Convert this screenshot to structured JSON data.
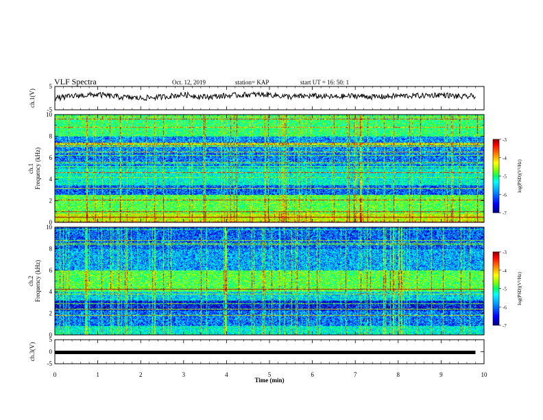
{
  "header": {
    "title": "VLF Spectra",
    "date": "Oct. 12, 2019",
    "station": "station= KAP",
    "start": "start  UT =   16: 50: 1"
  },
  "colors": {
    "trace": "#000000",
    "spectrogram_bg": "#1a2fd6",
    "colormap": [
      "#00007f",
      "#0000ff",
      "#00a0ff",
      "#00ffff",
      "#00ff60",
      "#80ff00",
      "#ffff00",
      "#ff8000",
      "#ff0000",
      "#8b0000"
    ]
  },
  "chart_data": [
    {
      "type": "line",
      "name": "ch1-waveform",
      "ylabel": "ch.1(V)",
      "ylim": [
        -5,
        5
      ],
      "yticks": [
        "5",
        "-5"
      ],
      "xlim": [
        0,
        10
      ],
      "description_values": "noisy trace oscillating roughly between -1 and 2 V",
      "x": [
        0,
        0.5,
        1,
        1.5,
        2,
        2.5,
        3,
        3.5,
        4,
        4.5,
        5,
        5.5,
        6,
        6.5,
        7,
        7.5,
        8,
        8.5,
        9,
        9.5,
        9.8
      ],
      "y": [
        0,
        1,
        1.5,
        0.5,
        0,
        0.5,
        1.5,
        0.5,
        1,
        1.5,
        1.5,
        0.5,
        1,
        0.5,
        1,
        0.5,
        1,
        1,
        1.5,
        0.5,
        1
      ]
    },
    {
      "type": "heatmap",
      "name": "ch1-spectrogram",
      "ylabel": "ch.1\nFrequency (kHz)",
      "ylim": [
        0,
        10
      ],
      "yticks": [
        "0",
        "2",
        "4",
        "6",
        "8",
        "10"
      ],
      "xlim": [
        0,
        10
      ],
      "colorbar": {
        "label": "log(PSD)(V²/Hz)",
        "range": [
          -7,
          -3
        ],
        "ticks": [
          "-3",
          "-4",
          "-5",
          "-6",
          "-7"
        ]
      },
      "bands": [
        {
          "from": 0,
          "to": 0.8,
          "level": -4.5
        },
        {
          "from": 0.8,
          "to": 2.5,
          "level": -5
        },
        {
          "from": 2.5,
          "to": 3.4,
          "level": -6.3
        },
        {
          "from": 3.4,
          "to": 5.0,
          "level": -5.6
        },
        {
          "from": 5.0,
          "to": 6.5,
          "level": -6.2
        },
        {
          "from": 6.5,
          "to": 8.0,
          "level": -6.1
        },
        {
          "from": 8.0,
          "to": 10,
          "level": -5.2
        }
      ]
    },
    {
      "type": "heatmap",
      "name": "ch2-spectrogram",
      "ylabel": "ch.2\nFrequency (kHz)",
      "ylim": [
        0,
        10
      ],
      "yticks": [
        "0",
        "2",
        "4",
        "6",
        "8",
        "10"
      ],
      "xlim": [
        0,
        10
      ],
      "colorbar": {
        "label": "log(PSD)(V²/Hz)",
        "range": [
          -7,
          -3
        ],
        "ticks": [
          "-3",
          "-4",
          "-5",
          "-6",
          "-7"
        ]
      },
      "bands": [
        {
          "from": 0,
          "to": 0.8,
          "level": -5.6
        },
        {
          "from": 0.8,
          "to": 2.2,
          "level": -6.2
        },
        {
          "from": 2.2,
          "to": 3.2,
          "level": -6.6
        },
        {
          "from": 3.2,
          "to": 4.0,
          "level": -5.8
        },
        {
          "from": 4.0,
          "to": 6.0,
          "level": -5.0
        },
        {
          "from": 6.0,
          "to": 8.0,
          "level": -6.0
        },
        {
          "from": 8.0,
          "to": 10,
          "level": -6.3
        }
      ]
    },
    {
      "type": "line",
      "name": "ch3-waveform",
      "ylabel": "ch.3(V)",
      "ylim": [
        -5,
        5
      ],
      "yticks": [
        "5",
        "0",
        "-5"
      ],
      "xlim": [
        0,
        10
      ],
      "x": [
        0,
        9.8
      ],
      "y": [
        0,
        0
      ]
    }
  ],
  "xaxis": {
    "label": "Time (min)",
    "ticks": [
      "0",
      "1",
      "2",
      "3",
      "4",
      "5",
      "6",
      "7",
      "8",
      "9",
      "10"
    ]
  }
}
